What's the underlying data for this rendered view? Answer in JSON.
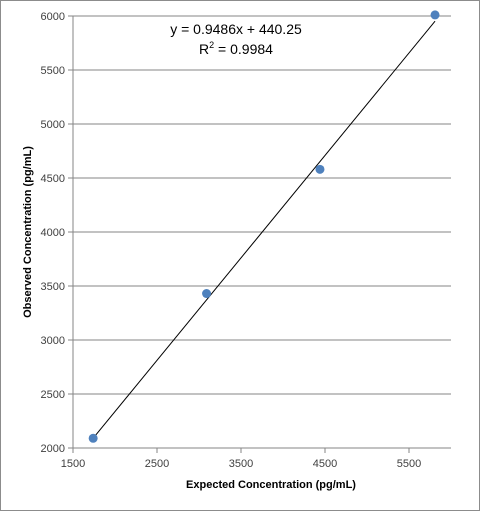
{
  "chart_data": {
    "type": "scatter",
    "title": "",
    "xlabel": "Expected Concentration (pg/mL)",
    "ylabel": "Observed Concentration (pg/mL)",
    "xlim": [
      1500,
      6000
    ],
    "ylim": [
      2000,
      6000
    ],
    "x_ticks": [
      "1500",
      "2500",
      "3500",
      "4500",
      "5500"
    ],
    "y_ticks": [
      "2000",
      "2500",
      "3000",
      "3500",
      "4000",
      "4500",
      "5000",
      "5500",
      "6000"
    ],
    "grid": "horizontal",
    "legend": "none",
    "series": [
      {
        "x": [
          1740,
          3090,
          4440,
          5810
        ],
        "y": [
          2090,
          3430,
          4580,
          6010
        ],
        "color": "#4f81bd"
      }
    ],
    "trendline": {
      "slope": 0.9486,
      "intercept": 440.25,
      "color": "#000000",
      "equation": "y = 0.9486x + 440.25",
      "r2_prefix": "R",
      "r2_exponent": "2",
      "r2_value": " = 0.9984"
    }
  }
}
